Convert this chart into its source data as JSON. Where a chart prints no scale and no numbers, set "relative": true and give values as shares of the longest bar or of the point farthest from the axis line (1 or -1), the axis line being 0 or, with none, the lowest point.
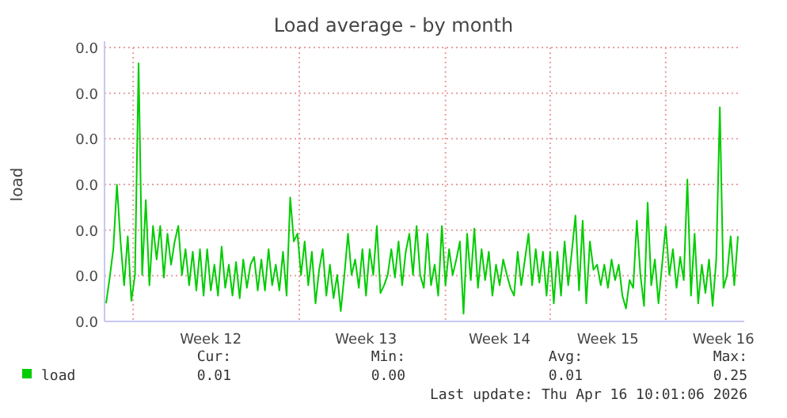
{
  "chart_data": {
    "type": "line",
    "title": "Load average - by month",
    "ylabel": "load",
    "relative": true,
    "categories": [
      null,
      null,
      null,
      null,
      null,
      null,
      null,
      null,
      null,
      null,
      null,
      null,
      null,
      null,
      null,
      null,
      null,
      null,
      null,
      null,
      null,
      null,
      null,
      null,
      null,
      null,
      null,
      null,
      null,
      "Week 12",
      null,
      null,
      null,
      null,
      null,
      null,
      null,
      null,
      null,
      null,
      null,
      null,
      null,
      null,
      null,
      null,
      null,
      null,
      null,
      null,
      null,
      null,
      null,
      null,
      null,
      null,
      null,
      null,
      null,
      null,
      null,
      null,
      null,
      null,
      null,
      null,
      null,
      null,
      null,
      null,
      null,
      null,
      "Week 13",
      null,
      null,
      null,
      null,
      null,
      null,
      null,
      null,
      null,
      null,
      null,
      null,
      null,
      null,
      null,
      null,
      null,
      null,
      null,
      null,
      null,
      null,
      null,
      null,
      null,
      null,
      null,
      null,
      null,
      null,
      null,
      null,
      null,
      null,
      null,
      null,
      "Week 14",
      null,
      null,
      null,
      null,
      null,
      null,
      null,
      null,
      null,
      null,
      null,
      null,
      null,
      null,
      null,
      null,
      null,
      null,
      null,
      null,
      null,
      null,
      null,
      null,
      null,
      null,
      null,
      null,
      null,
      "Week 15",
      null,
      null,
      null,
      null,
      null,
      null,
      null,
      null,
      null,
      null,
      null,
      null,
      null,
      null,
      null,
      null,
      null,
      null,
      null,
      null,
      null,
      null,
      null,
      null,
      null,
      null,
      null,
      null,
      null,
      null,
      null,
      "Week 16",
      null,
      null,
      null,
      null
    ],
    "grid": true,
    "legend": "bottom left",
    "marker": "none",
    "line_style": "solid",
    "series": [
      {
        "name": "load",
        "color": "#00cc00",
        "values": [
          0.07,
          0.17,
          0.28,
          0.53,
          0.31,
          0.14,
          0.33,
          0.08,
          0.18,
          1,
          0.18,
          0.47,
          0.14,
          0.37,
          0.24,
          0.37,
          0.17,
          0.34,
          0.22,
          0.31,
          0.37,
          0.18,
          0.28,
          0.14,
          0.27,
          0.12,
          0.28,
          0.1,
          0.28,
          0.12,
          0.22,
          0.1,
          0.29,
          0.13,
          0.22,
          0.1,
          0.23,
          0.09,
          0.24,
          0.13,
          0.22,
          0.25,
          0.12,
          0.24,
          0.12,
          0.28,
          0.14,
          0.22,
          0.12,
          0.27,
          0.1,
          0.48,
          0.31,
          0.34,
          0.18,
          0.31,
          0.14,
          0.27,
          0.07,
          0.2,
          0.28,
          0.1,
          0.22,
          0.09,
          0.18,
          0.04,
          0.18,
          0.34,
          0.18,
          0.24,
          0.13,
          0.28,
          0.1,
          0.28,
          0.18,
          0.37,
          0.11,
          0.14,
          0.18,
          0.28,
          0.17,
          0.31,
          0.14,
          0.27,
          0.34,
          0.18,
          0.37,
          0.18,
          0.13,
          0.34,
          0.14,
          0.22,
          0.1,
          0.37,
          0.14,
          0.28,
          0.18,
          0.24,
          0.31,
          0.03,
          0.34,
          0.16,
          0.36,
          0.13,
          0.28,
          0.16,
          0.27,
          0.1,
          0.22,
          0.14,
          0.24,
          0.18,
          0.13,
          0.1,
          0.27,
          0.14,
          0.24,
          0.34,
          0.14,
          0.28,
          0.15,
          0.27,
          0.1,
          0.27,
          0.07,
          0.27,
          0.1,
          0.31,
          0.14,
          0.27,
          0.41,
          0.12,
          0.39,
          0.07,
          0.31,
          0.2,
          0.22,
          0.14,
          0.22,
          0.13,
          0.24,
          0.16,
          0.22,
          0.1,
          0.05,
          0.16,
          0.13,
          0.39,
          0.18,
          0.06,
          0.46,
          0.14,
          0.24,
          0.07,
          0.22,
          0.37,
          0.18,
          0.28,
          0.13,
          0.25,
          0.16,
          0.55,
          0.1,
          0.34,
          0.07,
          0.22,
          0.11,
          0.24,
          0.06,
          0.24,
          0.83,
          0.13,
          0.18,
          0.33,
          0.14,
          0.33
        ]
      }
    ],
    "annotations": [
      "0.0",
      "0.0",
      "0.0",
      "0.0",
      "0.0",
      "0.0",
      "0.0",
      "Cur:",
      "Min:",
      "Avg:",
      "Max:",
      "0.01",
      "0.00",
      "0.01",
      "0.25",
      "Last update: Thu Apr 16 10:01:06 2026"
    ]
  }
}
